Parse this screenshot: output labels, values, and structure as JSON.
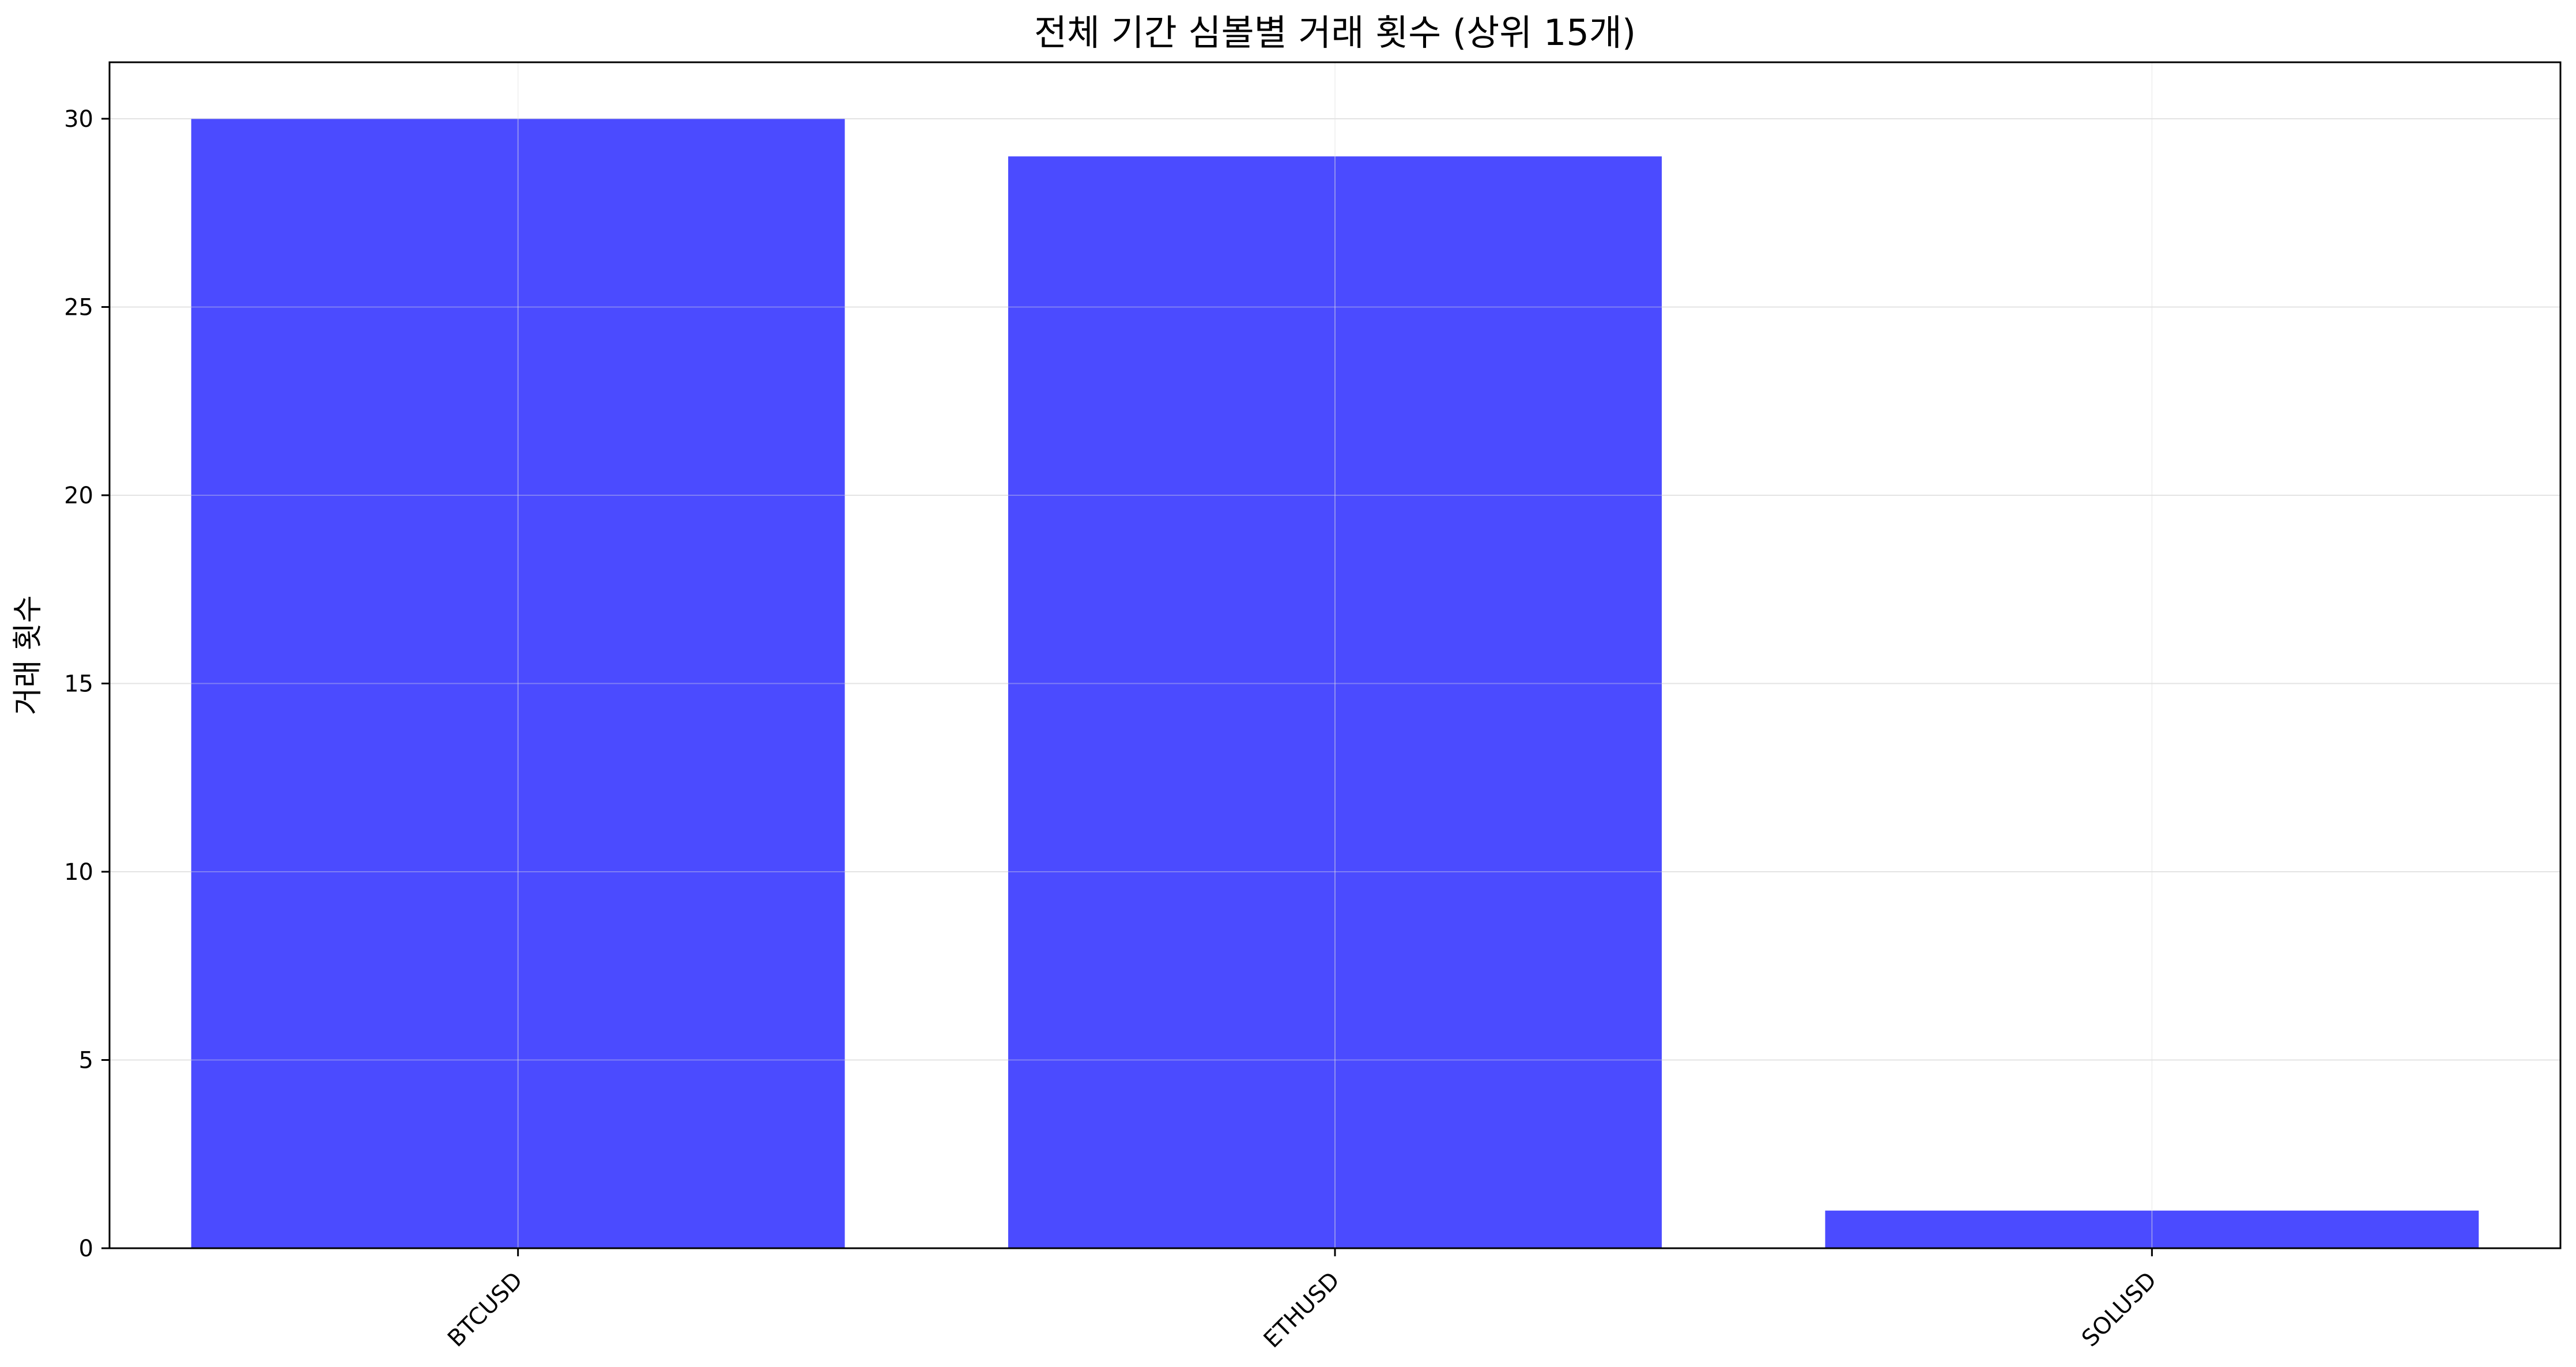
{
  "chart_data": {
    "type": "bar",
    "title": "전체 기간 심볼별 거래 횟수 (상위 15개)",
    "xlabel": "",
    "ylabel": "거래 횟수",
    "categories": [
      "BTCUSD",
      "ETHUSD",
      "SOLUSD"
    ],
    "values": [
      30,
      29,
      1
    ],
    "ylim": [
      0,
      31.5
    ],
    "yticks": [
      0,
      5,
      10,
      15,
      20,
      25,
      30
    ],
    "grid": true,
    "bar_color": "#4B4BFF",
    "grid_color": "#E3E3E3"
  }
}
